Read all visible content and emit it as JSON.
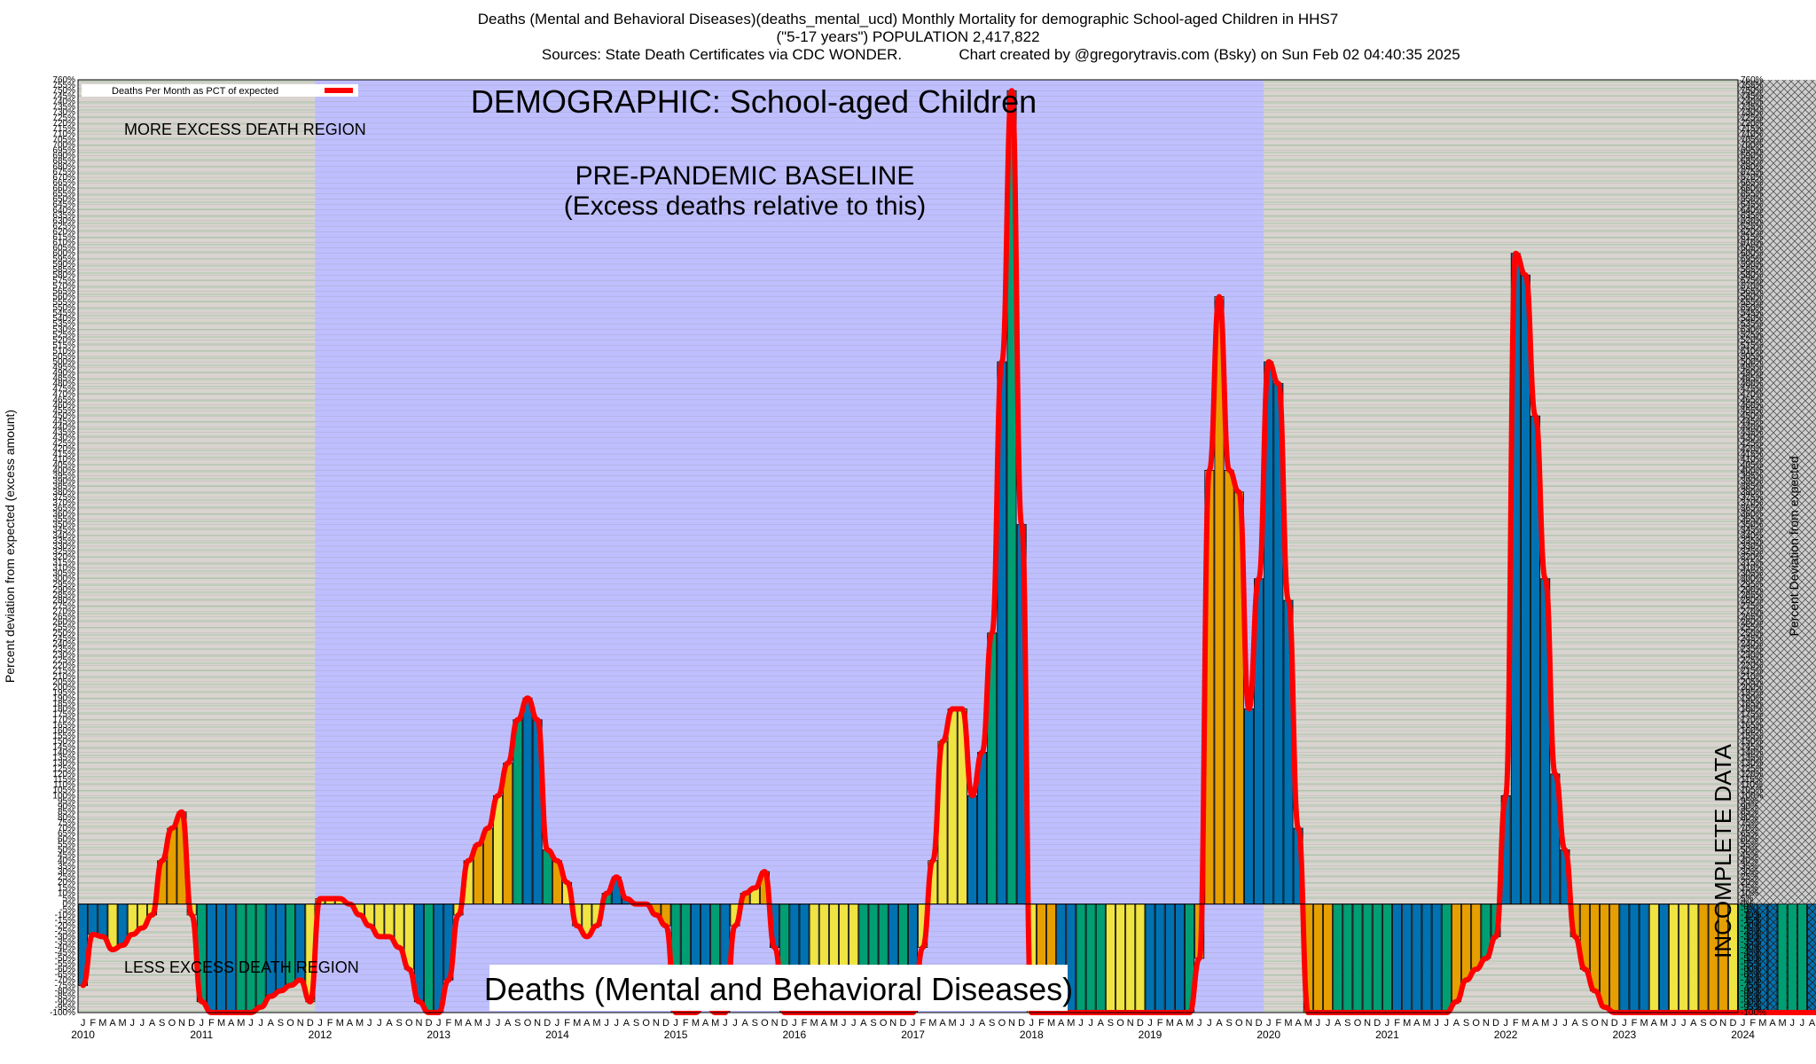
{
  "header": {
    "line1": "Deaths (Mental and Behavioral Diseases)(deaths_mental_ucd) Monthly Mortality for demographic School-aged Children in HHS7",
    "line2": "(\"5-17 years\") POPULATION 2,417,822",
    "line3a": "Sources: State Death Certificates via CDC WONDER.",
    "line3b": "Chart created by @gregorytravis.com (Bsky) on Sun Feb 02 04:40:35 2025"
  },
  "chart_data": {
    "type": "bar",
    "title": "DEMOGRAPHIC: School-aged Children",
    "subtitle": "Deaths (Mental and Behavioral Diseases)",
    "ylabel_left": "Percent deviation from expected (excess amount)",
    "ylabel_right": "Percent Deviation from expected",
    "ylim": [
      -100,
      760
    ],
    "ytick_step": 5,
    "legend": {
      "label": "Deaths Per Month as PCT of expected",
      "position": "top-left"
    },
    "annotations": {
      "more_excess": "MORE EXCESS DEATH REGION",
      "less_excess": "LESS EXCESS DEATH REGION",
      "baseline1": "PRE-PANDEMIC BASELINE",
      "baseline2": "(Excess deaths relative to this)",
      "incomplete": "INCOMPLETE DATA"
    },
    "month_letters": [
      "J",
      "F",
      "M",
      "A",
      "M",
      "J",
      "J",
      "A",
      "S",
      "O",
      "N",
      "D"
    ],
    "years": [
      "2010",
      "2011",
      "2012",
      "2013",
      "2014",
      "2015",
      "2016",
      "2017",
      "2018",
      "2019",
      "2020",
      "2021",
      "2022",
      "2023",
      "2024"
    ],
    "baseline_range": [
      "2012-01",
      "2019-12"
    ],
    "incomplete_range": [
      "2024-01",
      "2024-12"
    ],
    "colors": {
      "yellow": "#f0e442",
      "orange": "#e69f00",
      "green": "#009e73",
      "blue": "#0072b2",
      "line": "#ff0000",
      "baseline_bg": "#bfbfff",
      "hatch_bg": "#d8d8d8"
    },
    "series": [
      {
        "name": "Deaths Per Month as PCT of expected",
        "values": [
          -75,
          -28,
          -30,
          -42,
          -38,
          -28,
          -22,
          -10,
          40,
          70,
          85,
          -10,
          -90,
          -100,
          -100,
          -100,
          -100,
          -100,
          -95,
          -85,
          -80,
          -75,
          -70,
          -90,
          5,
          5,
          5,
          0,
          -10,
          -20,
          -30,
          -30,
          -40,
          -60,
          -90,
          -100,
          -100,
          -70,
          -10,
          40,
          55,
          70,
          100,
          130,
          170,
          190,
          170,
          50,
          40,
          20,
          -20,
          -30,
          -20,
          10,
          25,
          5,
          0,
          0,
          -10,
          -20,
          -100,
          -100,
          -100,
          -90,
          -100,
          -100,
          -20,
          10,
          15,
          30,
          -40,
          -100,
          -100,
          -100,
          -100,
          -100,
          -100,
          -100,
          -100,
          -100,
          -100,
          -100,
          -100,
          -100,
          -100,
          -40,
          40,
          150,
          180,
          180,
          100,
          140,
          250,
          500,
          750,
          350,
          -100,
          -100,
          -100,
          -100,
          -100,
          -100,
          -100,
          -100,
          -100,
          -100,
          -100,
          -100,
          -100,
          -100,
          -100,
          -100,
          -100,
          -50,
          400,
          560,
          400,
          380,
          180,
          300,
          500,
          480,
          280,
          70,
          -100,
          -100,
          -100,
          -100,
          -100,
          -100,
          -100,
          -100,
          -100,
          -100,
          -100,
          -100,
          -100,
          -100,
          -100,
          -90,
          -70,
          -60,
          -50,
          -30,
          100,
          600,
          580,
          450,
          300,
          120,
          50,
          -30,
          -60,
          -80,
          -95,
          -100
        ]
      }
    ],
    "bar_colors": [
      "blue",
      "blue",
      "blue",
      "yellow",
      "blue",
      "yellow",
      "yellow",
      "yellow",
      "orange",
      "orange",
      "orange",
      "yellow",
      "green",
      "blue",
      "blue",
      "blue",
      "green",
      "green",
      "green",
      "blue",
      "blue",
      "green",
      "blue",
      "yellow",
      "yellow",
      "yellow",
      "yellow",
      "yellow",
      "yellow",
      "yellow",
      "yellow",
      "yellow",
      "yellow",
      "yellow",
      "blue",
      "green",
      "blue",
      "blue",
      "yellow",
      "yellow",
      "orange",
      "orange",
      "yellow",
      "orange",
      "green",
      "blue",
      "blue",
      "green",
      "orange",
      "yellow",
      "yellow",
      "yellow",
      "yellow",
      "green",
      "blue",
      "blue",
      "yellow",
      "yellow",
      "orange",
      "orange",
      "green",
      "green",
      "blue",
      "blue",
      "green",
      "blue",
      "yellow",
      "orange",
      "yellow",
      "orange",
      "blue",
      "green",
      "blue",
      "blue",
      "yellow",
      "yellow",
      "yellow",
      "yellow",
      "yellow",
      "green",
      "green",
      "green",
      "blue",
      "green",
      "blue",
      "yellow",
      "yellow",
      "yellow",
      "yellow",
      "yellow",
      "blue",
      "blue",
      "green",
      "blue",
      "green",
      "blue",
      "yellow",
      "orange",
      "orange",
      "blue",
      "blue",
      "green",
      "green",
      "green",
      "yellow",
      "yellow",
      "yellow",
      "yellow",
      "blue",
      "blue",
      "blue",
      "blue",
      "green",
      "orange",
      "orange",
      "orange",
      "orange",
      "orange",
      "blue",
      "blue",
      "blue",
      "blue",
      "blue",
      "blue",
      "orange",
      "orange",
      "orange",
      "green",
      "green",
      "green",
      "green",
      "green",
      "green",
      "blue",
      "blue",
      "blue",
      "blue",
      "blue",
      "green",
      "orange",
      "orange",
      "orange",
      "green",
      "green",
      "blue",
      "blue",
      "blue",
      "blue",
      "blue",
      "blue",
      "blue",
      "orange",
      "orange",
      "orange",
      "orange",
      "orange"
    ]
  }
}
